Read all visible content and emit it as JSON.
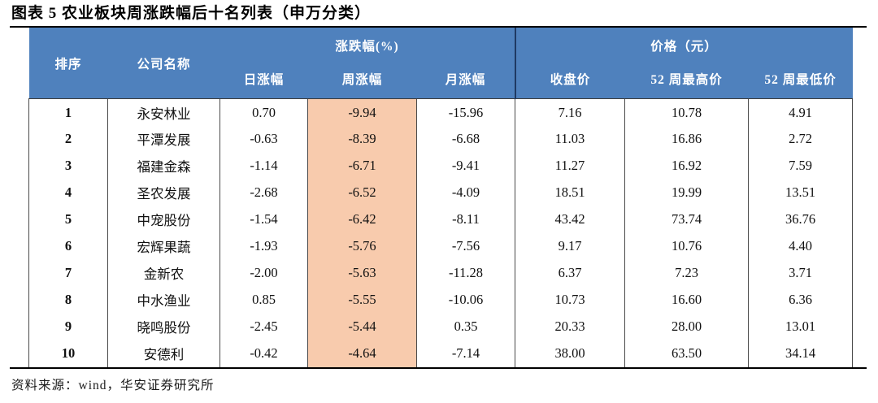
{
  "title": "图表 5 农业板块周涨跌幅后十名列表（申万分类）",
  "colors": {
    "header_bg": "#4F81BD",
    "header_text": "#FFFFFF",
    "highlight_bg": "#F8CBAD",
    "divider_dark": "#1F3A63",
    "border": "#4A4A4A",
    "rule": "#000000"
  },
  "table": {
    "rank_header": "排序",
    "company_header": "公司名称",
    "group_change_header": "涨跌幅(%)",
    "group_price_header": "价格（元）",
    "sub_headers": [
      "日涨幅",
      "周涨幅",
      "月涨幅",
      "收盘价",
      "52 周最高价",
      "52 周最低价"
    ],
    "rows": [
      {
        "rank": "1",
        "company": "永安林业",
        "daily": "0.70",
        "weekly": "-9.94",
        "monthly": "-15.96",
        "close": "7.16",
        "high52": "10.78",
        "low52": "4.91"
      },
      {
        "rank": "2",
        "company": "平潭发展",
        "daily": "-0.63",
        "weekly": "-8.39",
        "monthly": "-6.68",
        "close": "11.03",
        "high52": "16.86",
        "low52": "2.72"
      },
      {
        "rank": "3",
        "company": "福建金森",
        "daily": "-1.14",
        "weekly": "-6.71",
        "monthly": "-9.41",
        "close": "11.27",
        "high52": "16.92",
        "low52": "7.59"
      },
      {
        "rank": "4",
        "company": "圣农发展",
        "daily": "-2.68",
        "weekly": "-6.52",
        "monthly": "-4.09",
        "close": "18.51",
        "high52": "19.99",
        "low52": "13.51"
      },
      {
        "rank": "5",
        "company": "中宠股份",
        "daily": "-1.54",
        "weekly": "-6.42",
        "monthly": "-8.11",
        "close": "43.42",
        "high52": "73.74",
        "low52": "36.76"
      },
      {
        "rank": "6",
        "company": "宏辉果蔬",
        "daily": "-1.93",
        "weekly": "-5.76",
        "monthly": "-7.56",
        "close": "9.17",
        "high52": "10.76",
        "low52": "4.40"
      },
      {
        "rank": "7",
        "company": "金新农",
        "daily": "-2.00",
        "weekly": "-5.63",
        "monthly": "-11.28",
        "close": "6.37",
        "high52": "7.23",
        "low52": "3.71"
      },
      {
        "rank": "8",
        "company": "中水渔业",
        "daily": "0.85",
        "weekly": "-5.55",
        "monthly": "-10.06",
        "close": "10.73",
        "high52": "16.60",
        "low52": "6.36"
      },
      {
        "rank": "9",
        "company": "晓鸣股份",
        "daily": "-2.45",
        "weekly": "-5.44",
        "monthly": "0.35",
        "close": "20.33",
        "high52": "28.00",
        "low52": "13.01"
      },
      {
        "rank": "10",
        "company": "安德利",
        "daily": "-0.42",
        "weekly": "-4.64",
        "monthly": "-7.14",
        "close": "38.00",
        "high52": "63.50",
        "low52": "34.14"
      }
    ]
  },
  "footer": {
    "source": "资料来源：wind，华安证券研究所"
  }
}
